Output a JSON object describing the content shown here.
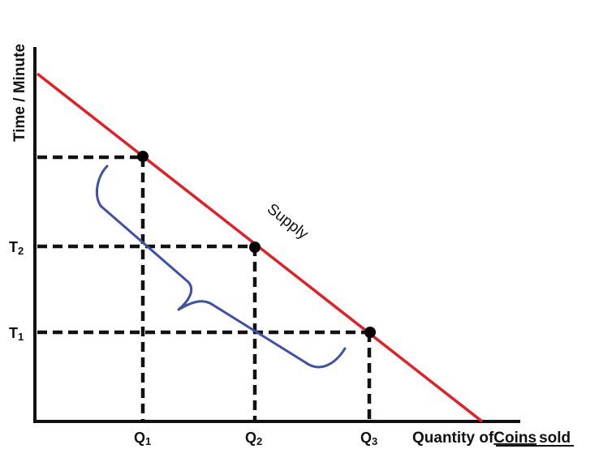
{
  "diagram": {
    "y_axis_title": "Time / Minute",
    "x_axis_title_prefix": "Quantity of",
    "x_axis_title_emphasis": "Coins",
    "x_axis_title_suffix": "sold",
    "curve_label": "Supply",
    "y_ticks": [
      {
        "letter": "T",
        "sub": "2"
      },
      {
        "letter": "T",
        "sub": "1"
      }
    ],
    "x_ticks": [
      {
        "letter": "Q",
        "sub": "1"
      },
      {
        "letter": "Q",
        "sub": "2"
      },
      {
        "letter": "Q",
        "sub": "3"
      }
    ],
    "colors": {
      "axis": "#111111",
      "supply_line": "#e31e24",
      "guide_lines": "#111111",
      "points": "#000000",
      "annotation_brace": "#3f4faa"
    }
  }
}
